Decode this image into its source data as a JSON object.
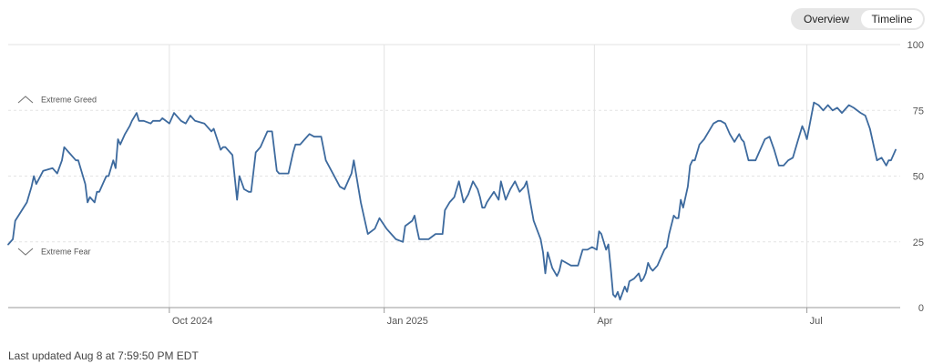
{
  "view_toggle": {
    "options": [
      "Overview",
      "Timeline"
    ],
    "selected": "Timeline"
  },
  "footer": {
    "last_updated": "Last updated Aug 8 at 7:59:50 PM EDT"
  },
  "colors": {
    "line": "#3d6a9e",
    "grid": "#e3e3e3",
    "axis": "#9a9a9a"
  },
  "chart_data": {
    "type": "line",
    "title": "",
    "xlabel": "",
    "ylabel": "",
    "ylim": [
      0,
      100
    ],
    "yticks": [
      0,
      25,
      50,
      75,
      100
    ],
    "y_axis_side": "right",
    "xlim": [
      "2024-07-24",
      "2025-08-08"
    ],
    "xticks": [
      {
        "label": "Oct 2024",
        "date": "2024-10-01"
      },
      {
        "label": "Jan 2025",
        "date": "2025-01-01"
      },
      {
        "label": "Apr",
        "date": "2025-04-01"
      },
      {
        "label": "Jul",
        "date": "2025-07-01"
      }
    ],
    "annotations": [
      {
        "label": "Extreme Greed",
        "y": 75,
        "direction": "up"
      },
      {
        "label": "Extreme Fear",
        "y": 25,
        "direction": "down"
      }
    ],
    "grid": true,
    "series": [
      {
        "x": [
          "2024-07-24",
          "2024-07-26",
          "2024-07-27",
          "2024-08-01",
          "2024-08-03",
          "2024-08-04",
          "2024-08-05",
          "2024-08-08",
          "2024-08-12",
          "2024-08-14",
          "2024-08-16",
          "2024-08-17",
          "2024-08-19",
          "2024-08-22",
          "2024-08-23",
          "2024-08-26",
          "2024-08-27",
          "2024-08-28",
          "2024-08-30",
          "2024-08-31",
          "2024-09-01",
          "2024-09-03",
          "2024-09-04",
          "2024-09-05",
          "2024-09-07",
          "2024-09-08",
          "2024-09-09",
          "2024-09-10",
          "2024-09-11",
          "2024-09-12",
          "2024-09-14",
          "2024-09-15",
          "2024-09-17",
          "2024-09-18",
          "2024-09-20",
          "2024-09-23",
          "2024-09-24",
          "2024-09-25",
          "2024-09-27",
          "2024-09-28",
          "2024-10-01",
          "2024-10-03",
          "2024-10-06",
          "2024-10-08",
          "2024-10-10",
          "2024-10-12",
          "2024-10-16",
          "2024-10-19",
          "2024-10-20",
          "2024-10-23",
          "2024-10-24",
          "2024-10-25",
          "2024-10-28",
          "2024-10-30",
          "2024-10-31",
          "2024-11-02",
          "2024-11-04",
          "2024-11-05",
          "2024-11-07",
          "2024-11-09",
          "2024-11-12",
          "2024-11-14",
          "2024-11-16",
          "2024-11-17",
          "2024-11-21",
          "2024-11-23",
          "2024-11-24",
          "2024-11-26",
          "2024-11-28",
          "2024-11-30",
          "2024-12-02",
          "2024-12-03",
          "2024-12-05",
          "2024-12-07",
          "2024-12-10",
          "2024-12-13",
          "2024-12-15",
          "2024-12-17",
          "2024-12-18",
          "2024-12-19",
          "2024-12-22",
          "2024-12-25",
          "2024-12-28",
          "2024-12-30",
          "2025-01-02",
          "2025-01-04",
          "2025-01-06",
          "2025-01-09",
          "2025-01-10",
          "2025-01-13",
          "2025-01-14",
          "2025-01-15",
          "2025-01-16",
          "2025-01-18",
          "2025-01-20",
          "2025-01-23",
          "2025-01-26",
          "2025-01-27",
          "2025-01-29",
          "2025-01-31",
          "2025-02-02",
          "2025-02-04",
          "2025-02-06",
          "2025-02-08",
          "2025-02-10",
          "2025-02-11",
          "2025-02-12",
          "2025-02-13",
          "2025-02-14",
          "2025-02-17",
          "2025-02-19",
          "2025-02-20",
          "2025-02-22",
          "2025-02-24",
          "2025-02-26",
          "2025-02-28",
          "2025-03-02",
          "2025-03-03",
          "2025-03-05",
          "2025-03-06",
          "2025-03-09",
          "2025-03-10",
          "2025-03-11",
          "2025-03-12",
          "2025-03-14",
          "2025-03-16",
          "2025-03-17",
          "2025-03-18",
          "2025-03-20",
          "2025-03-22",
          "2025-03-25",
          "2025-03-27",
          "2025-03-29",
          "2025-03-31",
          "2025-04-02",
          "2025-04-03",
          "2025-04-04",
          "2025-04-06",
          "2025-04-07",
          "2025-04-08",
          "2025-04-09",
          "2025-04-10",
          "2025-04-11",
          "2025-04-12",
          "2025-04-14",
          "2025-04-15",
          "2025-04-16",
          "2025-04-18",
          "2025-04-20",
          "2025-04-21",
          "2025-04-22",
          "2025-04-23",
          "2025-04-24",
          "2025-04-25",
          "2025-04-26",
          "2025-04-28",
          "2025-04-29",
          "2025-05-01",
          "2025-05-02",
          "2025-05-03",
          "2025-05-05",
          "2025-05-06",
          "2025-05-07",
          "2025-05-08",
          "2025-05-09",
          "2025-05-11",
          "2025-05-12",
          "2025-05-13",
          "2025-05-14",
          "2025-05-16",
          "2025-05-18",
          "2025-05-20",
          "2025-05-22",
          "2025-05-24",
          "2025-05-25",
          "2025-05-27",
          "2025-05-29",
          "2025-05-31",
          "2025-06-02",
          "2025-06-03",
          "2025-06-04",
          "2025-06-06",
          "2025-06-09",
          "2025-06-10",
          "2025-06-12",
          "2025-06-13",
          "2025-06-15",
          "2025-06-17",
          "2025-06-19",
          "2025-06-21",
          "2025-06-23",
          "2025-06-25",
          "2025-06-27",
          "2025-06-29",
          "2025-06-30",
          "2025-07-01",
          "2025-07-04",
          "2025-07-06",
          "2025-07-08",
          "2025-07-10",
          "2025-07-12",
          "2025-07-14",
          "2025-07-16",
          "2025-07-19",
          "2025-07-21",
          "2025-07-24",
          "2025-07-26",
          "2025-07-28",
          "2025-07-30",
          "2025-07-31",
          "2025-08-02",
          "2025-08-04",
          "2025-08-05",
          "2025-08-06",
          "2025-08-08"
        ],
        "y": [
          24,
          26,
          33,
          40,
          46,
          50,
          47,
          52,
          53,
          51,
          56,
          61,
          59,
          56,
          56,
          47,
          40,
          42,
          40,
          44,
          44,
          48,
          50,
          50,
          56,
          53,
          64,
          62,
          64,
          66,
          69,
          71,
          74,
          71,
          71,
          70,
          71,
          71,
          71,
          72,
          70,
          74,
          71,
          70,
          73,
          71,
          70,
          67,
          68,
          60,
          61,
          61,
          58,
          41,
          50,
          45,
          44,
          44,
          59,
          61,
          67,
          67,
          52,
          51,
          51,
          59,
          62,
          62,
          64,
          66,
          65,
          65,
          65,
          56,
          51,
          46,
          45,
          49,
          51,
          56,
          40,
          28,
          30,
          34,
          30,
          28,
          26,
          25,
          31,
          33,
          35,
          30,
          26,
          26,
          26,
          28,
          28,
          37,
          40,
          42,
          48,
          40,
          43,
          48,
          45,
          42,
          38,
          38,
          40,
          44,
          41,
          48,
          41,
          45,
          48,
          44,
          46,
          48,
          38,
          33,
          26,
          21,
          13,
          21,
          15,
          12,
          14,
          18,
          17,
          16,
          16,
          22,
          22,
          23,
          22,
          29,
          28,
          22,
          24,
          15,
          5,
          4,
          6,
          3,
          8,
          6,
          10,
          11,
          13,
          10,
          11,
          13,
          17,
          15,
          14,
          16,
          18,
          22,
          23,
          28,
          35,
          34,
          34,
          41,
          38,
          46,
          54,
          56,
          56,
          62,
          64,
          67,
          70,
          71,
          71,
          70,
          66,
          63,
          66,
          64,
          63,
          56,
          56,
          58,
          62,
          64,
          65,
          60,
          54,
          54,
          56,
          57,
          63,
          69,
          67,
          64,
          78,
          77,
          75,
          77,
          75,
          76,
          74,
          77,
          76,
          74,
          73,
          68,
          60,
          56,
          57,
          54,
          56,
          56,
          60
        ]
      }
    ]
  }
}
